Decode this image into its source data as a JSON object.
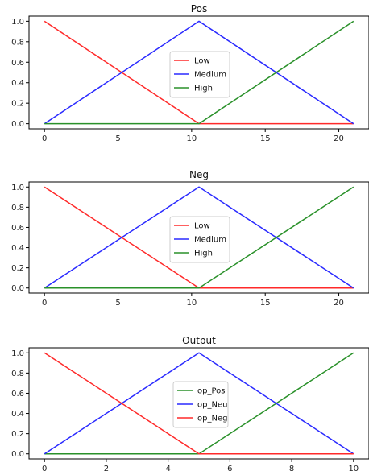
{
  "chart_data": [
    {
      "type": "line",
      "title": "Pos",
      "xlim": [
        -1.05,
        22.05
      ],
      "ylim": [
        -0.05,
        1.05
      ],
      "xticks": [
        0,
        5,
        10,
        15,
        20
      ],
      "yticks": [
        0.0,
        0.2,
        0.4,
        0.6,
        0.8,
        1.0
      ],
      "legend": "center",
      "series": [
        {
          "name": "Low",
          "color": "#ff2a2a",
          "x": [
            0,
            10.5,
            21
          ],
          "y": [
            1,
            0,
            0
          ]
        },
        {
          "name": "Medium",
          "color": "#2a2aff",
          "x": [
            0,
            10.5,
            21
          ],
          "y": [
            0,
            1,
            0
          ]
        },
        {
          "name": "High",
          "color": "#2a912a",
          "x": [
            0,
            10.5,
            21
          ],
          "y": [
            0,
            0,
            1
          ]
        }
      ]
    },
    {
      "type": "line",
      "title": "Neg",
      "xlim": [
        -1.05,
        22.05
      ],
      "ylim": [
        -0.05,
        1.05
      ],
      "xticks": [
        0,
        5,
        10,
        15,
        20
      ],
      "yticks": [
        0.0,
        0.2,
        0.4,
        0.6,
        0.8,
        1.0
      ],
      "legend": "center",
      "series": [
        {
          "name": "Low",
          "color": "#ff2a2a",
          "x": [
            0,
            10.5,
            21
          ],
          "y": [
            1,
            0,
            0
          ]
        },
        {
          "name": "Medium",
          "color": "#2a2aff",
          "x": [
            0,
            10.5,
            21
          ],
          "y": [
            0,
            1,
            0
          ]
        },
        {
          "name": "High",
          "color": "#2a912a",
          "x": [
            0,
            10.5,
            21
          ],
          "y": [
            0,
            0,
            1
          ]
        }
      ]
    },
    {
      "type": "line",
      "title": "Output",
      "xlim": [
        -0.5,
        10.5
      ],
      "ylim": [
        -0.05,
        1.05
      ],
      "xticks": [
        0,
        2,
        4,
        6,
        8,
        10
      ],
      "yticks": [
        0.0,
        0.2,
        0.4,
        0.6,
        0.8,
        1.0
      ],
      "legend": "center",
      "series": [
        {
          "name": "op_Pos",
          "color": "#2a912a",
          "x": [
            0,
            5,
            10
          ],
          "y": [
            0,
            0,
            1
          ]
        },
        {
          "name": "op_Neu",
          "color": "#2a2aff",
          "x": [
            0,
            5,
            10
          ],
          "y": [
            0,
            1,
            0
          ]
        },
        {
          "name": "op_Neg",
          "color": "#ff2a2a",
          "x": [
            0,
            5,
            10
          ],
          "y": [
            1,
            0,
            0
          ]
        }
      ]
    }
  ]
}
